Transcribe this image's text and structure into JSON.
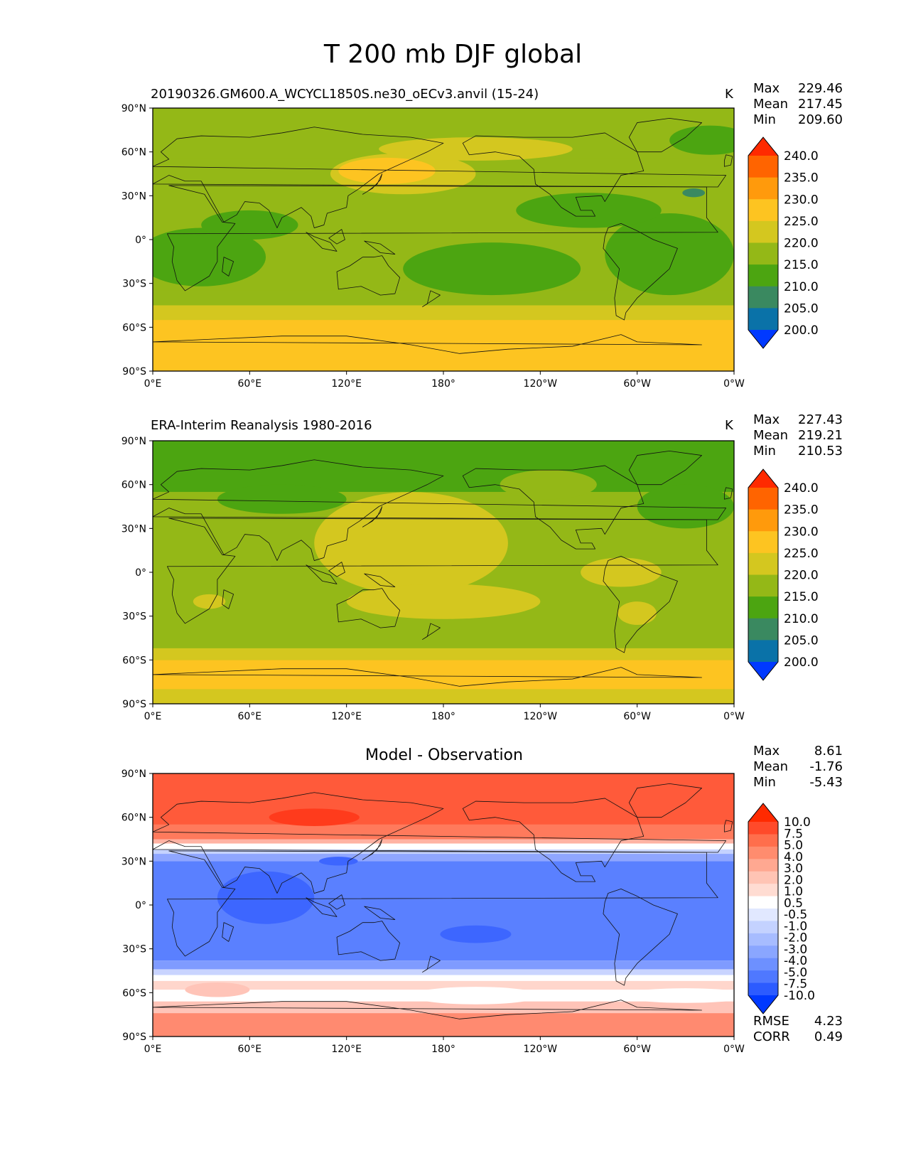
{
  "figure": {
    "title": "T 200 mb DJF global",
    "colors": {
      "c240": "#ff2a00",
      "c235": "#ff6400",
      "c230": "#ff9a0c",
      "c225": "#fdc421",
      "c220": "#d4c71f",
      "c215": "#94b817",
      "c210": "#4ca511",
      "c205": "#3a8960",
      "c200": "#0a72a8",
      "cmin": "#0039ff"
    }
  },
  "chart_data": [
    {
      "type": "heatmap",
      "title": "20190326.GM600.A_WCYCL1850S.ne30_oECv3.anvil (15-24)",
      "units": "K",
      "stats": [
        {
          "label": "Max",
          "value": "229.46"
        },
        {
          "label": "Mean",
          "value": "217.45"
        },
        {
          "label": "Min",
          "value": "209.60"
        }
      ],
      "xticks": [
        "0°E",
        "60°E",
        "120°E",
        "180°",
        "120°W",
        "60°W",
        "0°W"
      ],
      "yticks": [
        "90°N",
        "60°N",
        "30°N",
        "0°",
        "30°S",
        "60°S",
        "90°S"
      ],
      "colorbar_levels": [
        "240.0",
        "235.0",
        "230.0",
        "225.0",
        "220.0",
        "215.0",
        "210.0",
        "205.0",
        "200.0"
      ],
      "xlim": [
        0,
        360
      ],
      "ylim": [
        -90,
        90
      ]
    },
    {
      "type": "heatmap",
      "title": "ERA-Interim Reanalysis 1980-2016",
      "units": "K",
      "stats": [
        {
          "label": "Max",
          "value": "227.43"
        },
        {
          "label": "Mean",
          "value": "219.21"
        },
        {
          "label": "Min",
          "value": "210.53"
        }
      ],
      "xticks": [
        "0°E",
        "60°E",
        "120°E",
        "180°",
        "120°W",
        "60°W",
        "0°W"
      ],
      "yticks": [
        "90°N",
        "60°N",
        "30°N",
        "0°",
        "30°S",
        "60°S",
        "90°S"
      ],
      "colorbar_levels": [
        "240.0",
        "235.0",
        "230.0",
        "225.0",
        "220.0",
        "215.0",
        "210.0",
        "205.0",
        "200.0"
      ],
      "xlim": [
        0,
        360
      ],
      "ylim": [
        -90,
        90
      ]
    },
    {
      "type": "heatmap",
      "title": "Model - Observation",
      "units": "",
      "stats": [
        {
          "label": "Max",
          "value": "8.61"
        },
        {
          "label": "Mean",
          "value": "-1.76"
        },
        {
          "label": "Min",
          "value": "-5.43"
        }
      ],
      "xticks": [
        "0°E",
        "60°E",
        "120°E",
        "180°",
        "120°W",
        "60°W",
        "0°W"
      ],
      "yticks": [
        "90°N",
        "60°N",
        "30°N",
        "0°",
        "30°S",
        "60°S",
        "90°S"
      ],
      "colorbar_levels": [
        "10.0",
        "7.5",
        "5.0",
        "4.0",
        "3.0",
        "2.0",
        "1.0",
        "0.5",
        "-0.5",
        "-1.0",
        "-2.0",
        "-3.0",
        "-4.0",
        "-5.0",
        "-7.5",
        "-10.0"
      ],
      "metrics": [
        {
          "label": "RMSE",
          "value": "4.23"
        },
        {
          "label": "CORR",
          "value": "0.49"
        }
      ],
      "xlim": [
        0,
        360
      ],
      "ylim": [
        -90,
        90
      ]
    }
  ]
}
